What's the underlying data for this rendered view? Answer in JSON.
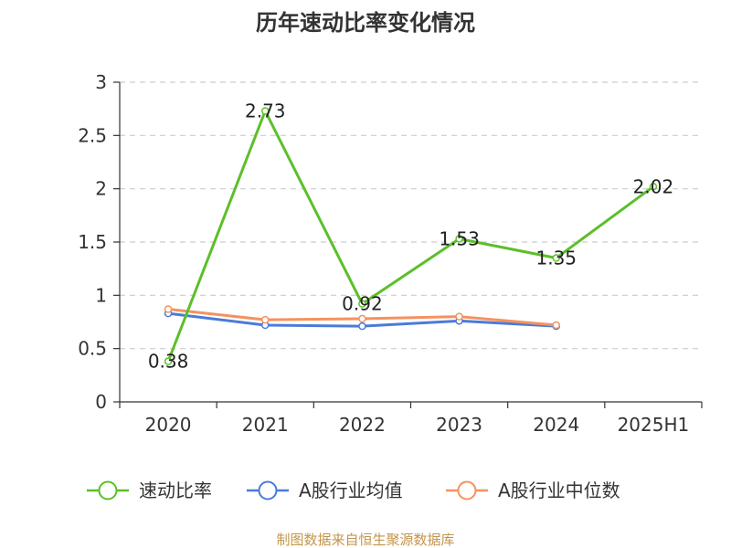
{
  "chart_data": {
    "type": "line",
    "title": "历年速动比率变化情况",
    "categories": [
      "2020",
      "2021",
      "2022",
      "2023",
      "2024",
      "2025H1"
    ],
    "ylim": [
      0,
      3
    ],
    "yticks": [
      "0",
      "0.5",
      "1",
      "1.5",
      "2",
      "2.5",
      "3"
    ],
    "grid": true,
    "legend_position": "bottom",
    "series": [
      {
        "name": "速动比率",
        "color": "#5cbf2a",
        "values": [
          0.38,
          2.73,
          0.92,
          1.53,
          1.35,
          2.02
        ],
        "labels": [
          "0.38",
          "2.73",
          "0.92",
          "1.53",
          "1.35",
          "2.02"
        ],
        "show_labels": true
      },
      {
        "name": "A股行业均值",
        "color": "#4b7bd9",
        "values": [
          0.83,
          0.72,
          0.71,
          0.76,
          0.71,
          null
        ],
        "show_labels": false
      },
      {
        "name": "A股行业中位数",
        "color": "#f4925f",
        "values": [
          0.87,
          0.77,
          0.78,
          0.8,
          0.72,
          null
        ],
        "show_labels": false
      }
    ]
  },
  "source": "制图数据来自恒生聚源数据库"
}
